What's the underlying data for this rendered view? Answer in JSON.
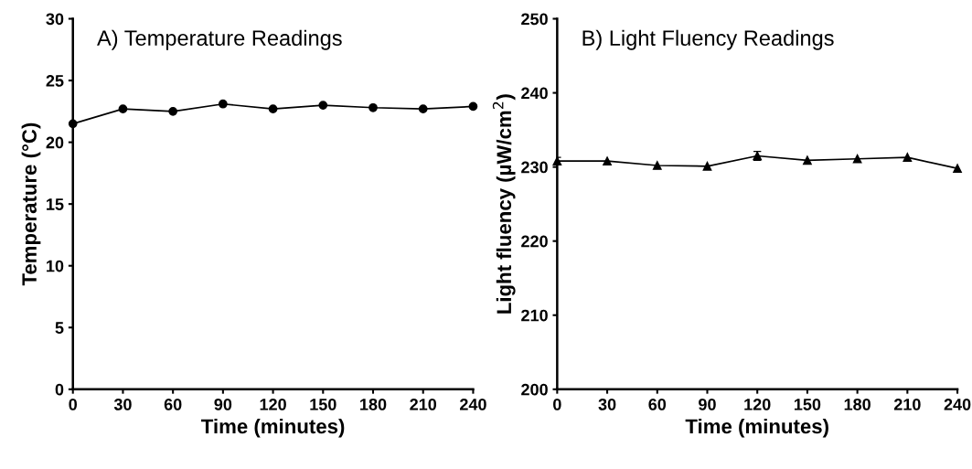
{
  "chart_data": [
    {
      "type": "line",
      "title": "A) Temperature Readings",
      "xlabel": "Time (minutes)",
      "ylabel": "Temperature (°C)",
      "x": [
        0,
        30,
        60,
        90,
        120,
        150,
        180,
        210,
        240
      ],
      "series": [
        {
          "color": "#000000",
          "values": [
            21.5,
            22.7,
            22.5,
            23.1,
            22.7,
            23.0,
            22.8,
            22.7,
            22.9
          ]
        }
      ],
      "xlim": [
        0,
        240
      ],
      "xticks": [
        0,
        30,
        60,
        90,
        120,
        150,
        180,
        210,
        240
      ],
      "ylim": [
        0,
        30
      ],
      "yticks": [
        0,
        5,
        10,
        15,
        20,
        25,
        30
      ],
      "marker": "circle",
      "line_style": "solid",
      "grid": false,
      "legend": false
    },
    {
      "type": "line",
      "title": "B) Light Fluency Readings",
      "xlabel": "Time (minutes)",
      "ylabel": "Light fluency (µW/cm$^{2}$)",
      "x": [
        0,
        30,
        60,
        90,
        120,
        150,
        180,
        210,
        240
      ],
      "series": [
        {
          "color": "#000000",
          "values": [
            230.8,
            230.8,
            230.2,
            230.1,
            231.5,
            230.9,
            231.1,
            231.3,
            229.8
          ],
          "errors": [
            0.5,
            null,
            null,
            null,
            0.6,
            null,
            null,
            null,
            null
          ]
        }
      ],
      "xlim": [
        0,
        240
      ],
      "xticks": [
        0,
        30,
        60,
        90,
        120,
        150,
        180,
        210,
        240
      ],
      "ylim": [
        200,
        250
      ],
      "yticks": [
        200,
        210,
        220,
        230,
        240,
        250
      ],
      "marker": "triangle",
      "line_style": "solid",
      "grid": false,
      "legend": false
    }
  ]
}
